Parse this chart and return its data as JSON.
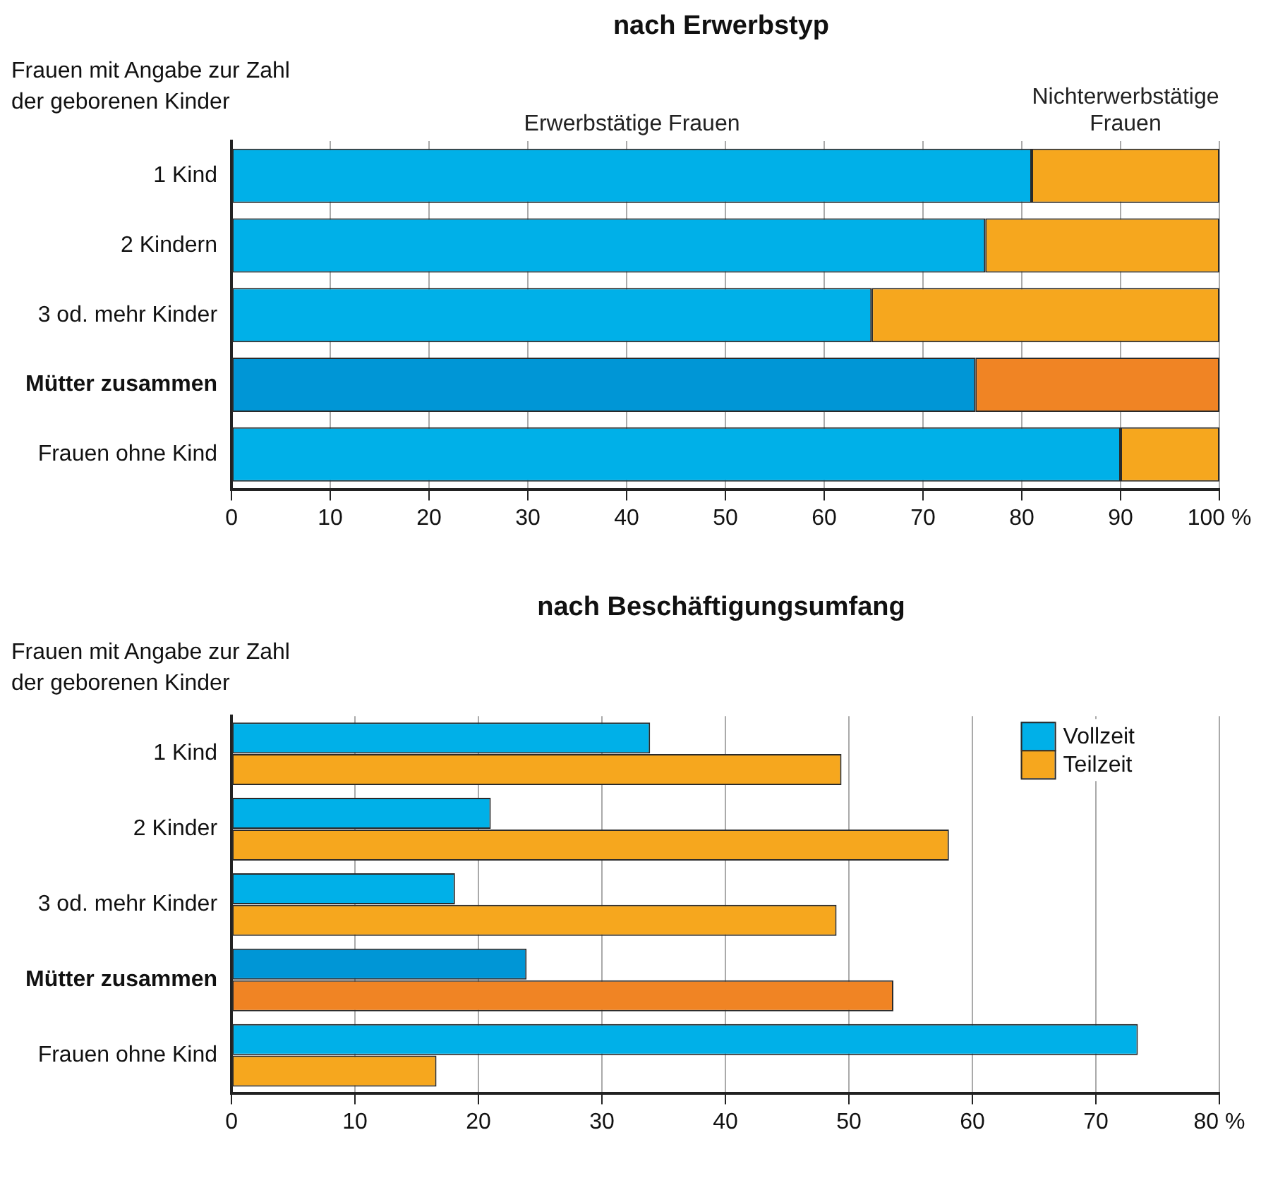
{
  "chart_data": [
    {
      "type": "bar",
      "title": "nach Erwerbstyp",
      "ylabel": "Frauen mit Angabe zur Zahl der geborenen Kinder",
      "orientation": "horizontal",
      "stacked": true,
      "categories": [
        "1 Kind",
        "2 Kindern",
        "3 od. mehr Kinder",
        "Mütter zusammen",
        "Frauen ohne Kind"
      ],
      "series": [
        {
          "name": "Erwerbstätige Frauen",
          "color": "#00b0e8",
          "colors": [
            "#00b0e8",
            "#00b0e8",
            "#00b0e8",
            "#0096d6",
            "#00b0e8"
          ],
          "values": [
            81,
            76.3,
            64.8,
            75.3,
            90
          ]
        },
        {
          "name": "Nichterwerbstätige Frauen",
          "color": "#f6a71e",
          "colors": [
            "#f6a71e",
            "#f6a71e",
            "#f6a71e",
            "#f08424",
            "#f6a71e"
          ],
          "values": [
            19,
            23.7,
            35.2,
            24.7,
            10
          ]
        }
      ],
      "xlim": [
        0,
        100
      ],
      "xticks": [
        0,
        10,
        20,
        30,
        40,
        50,
        60,
        70,
        80,
        90,
        {
          "value": 100,
          "label": "100 %"
        }
      ],
      "grid": "x",
      "legend": false
    },
    {
      "type": "bar",
      "title": "nach Beschäftigungsumfang",
      "ylabel": "Frauen mit Angabe zur Zahl der geborenen Kinder",
      "orientation": "horizontal",
      "categories": [
        "1 Kind",
        "2 Kinder",
        "3 od. mehr Kinder",
        "Mütter zusammen",
        "Frauen ohne Kind"
      ],
      "series": [
        {
          "name": "Vollzeit",
          "color": "#00b0e8",
          "colors": [
            "#00b0e8",
            "#00b0e8",
            "#00b0e8",
            "#0096d6",
            "#00b0e8"
          ],
          "values": [
            33.9,
            21,
            18.1,
            23.9,
            73.4
          ]
        },
        {
          "name": "Teilzeit",
          "color": "#f6a71e",
          "colors": [
            "#f6a71e",
            "#f6a71e",
            "#f6a71e",
            "#f08424",
            "#f6a71e"
          ],
          "values": [
            49.4,
            58.1,
            49,
            53.6,
            16.6
          ]
        }
      ],
      "xlim": [
        0,
        80
      ],
      "xticks": [
        0,
        10,
        20,
        30,
        40,
        50,
        60,
        70,
        {
          "value": 80,
          "label": "80 %"
        }
      ],
      "grid": "x",
      "legend": "top right"
    }
  ]
}
